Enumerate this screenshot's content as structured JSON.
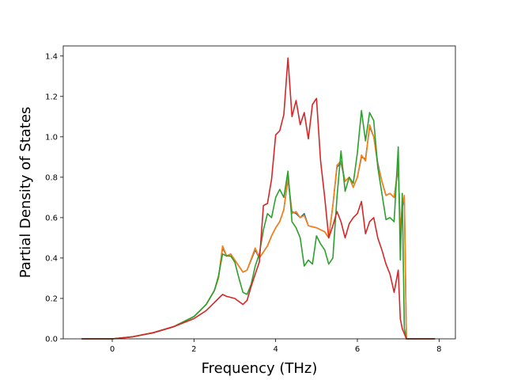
{
  "chart_data": {
    "type": "line",
    "xlabel": "Frequency (THz)",
    "ylabel": "Partial Density of States",
    "xlim": [
      -1.2,
      8.4
    ],
    "ylim": [
      0.0,
      1.45
    ],
    "x_ticks": [
      0,
      2,
      4,
      6,
      8
    ],
    "y_ticks": [
      0.0,
      0.2,
      0.4,
      0.6,
      0.8,
      1.0,
      1.2,
      1.4
    ],
    "x_tick_labels": [
      "0",
      "2",
      "4",
      "6",
      "8"
    ],
    "y_tick_labels": [
      "0.0",
      "0.2",
      "0.4",
      "0.6",
      "0.8",
      "1.0",
      "1.2",
      "1.4"
    ],
    "grid": false,
    "series": [
      {
        "color": "#1f77b4",
        "points": [
          [
            -0.75,
            0
          ],
          [
            0,
            0
          ],
          [
            0.5,
            0.01
          ],
          [
            1.0,
            0.03
          ],
          [
            1.5,
            0.06
          ],
          [
            2.0,
            0.11
          ],
          [
            2.3,
            0.17
          ],
          [
            2.5,
            0.24
          ],
          [
            2.6,
            0.3
          ],
          [
            2.7,
            0.45
          ],
          [
            2.8,
            0.41
          ],
          [
            2.9,
            0.42
          ],
          [
            3.0,
            0.39
          ],
          [
            3.2,
            0.33
          ],
          [
            3.3,
            0.34
          ],
          [
            3.5,
            0.44
          ],
          [
            3.6,
            0.4
          ],
          [
            3.7,
            0.43
          ],
          [
            3.8,
            0.46
          ],
          [
            3.9,
            0.51
          ],
          [
            4.0,
            0.55
          ],
          [
            4.1,
            0.58
          ],
          [
            4.2,
            0.64
          ],
          [
            4.3,
            0.79
          ],
          [
            4.4,
            0.63
          ],
          [
            4.5,
            0.62
          ],
          [
            4.6,
            0.6
          ],
          [
            4.7,
            0.62
          ],
          [
            4.8,
            0.56
          ],
          [
            5.0,
            0.55
          ],
          [
            5.1,
            0.54
          ],
          [
            5.2,
            0.53
          ],
          [
            5.3,
            0.5
          ],
          [
            5.4,
            0.66
          ],
          [
            5.5,
            0.85
          ],
          [
            5.6,
            0.87
          ],
          [
            5.7,
            0.78
          ],
          [
            5.8,
            0.8
          ],
          [
            5.9,
            0.75
          ],
          [
            6.0,
            0.8
          ],
          [
            6.1,
            0.9
          ],
          [
            6.2,
            0.89
          ],
          [
            6.3,
            1.05
          ],
          [
            6.4,
            1.0
          ],
          [
            6.5,
            0.87
          ],
          [
            6.6,
            0.78
          ],
          [
            6.7,
            0.71
          ],
          [
            6.8,
            0.72
          ],
          [
            6.9,
            0.7
          ],
          [
            7.0,
            0.85
          ],
          [
            7.05,
            0.53
          ],
          [
            7.1,
            0.65
          ],
          [
            7.15,
            0.7
          ],
          [
            7.2,
            0
          ],
          [
            7.9,
            0
          ]
        ]
      },
      {
        "color": "#ff7f0e",
        "points": [
          [
            -0.75,
            0
          ],
          [
            0,
            0
          ],
          [
            0.5,
            0.01
          ],
          [
            1.0,
            0.03
          ],
          [
            1.5,
            0.06
          ],
          [
            2.0,
            0.11
          ],
          [
            2.3,
            0.17
          ],
          [
            2.5,
            0.24
          ],
          [
            2.6,
            0.3
          ],
          [
            2.7,
            0.46
          ],
          [
            2.8,
            0.41
          ],
          [
            2.9,
            0.42
          ],
          [
            3.0,
            0.39
          ],
          [
            3.2,
            0.33
          ],
          [
            3.3,
            0.34
          ],
          [
            3.5,
            0.45
          ],
          [
            3.6,
            0.4
          ],
          [
            3.7,
            0.43
          ],
          [
            3.8,
            0.46
          ],
          [
            3.9,
            0.51
          ],
          [
            4.0,
            0.55
          ],
          [
            4.1,
            0.58
          ],
          [
            4.2,
            0.64
          ],
          [
            4.3,
            0.8
          ],
          [
            4.4,
            0.62
          ],
          [
            4.5,
            0.63
          ],
          [
            4.6,
            0.6
          ],
          [
            4.7,
            0.61
          ],
          [
            4.8,
            0.56
          ],
          [
            5.0,
            0.55
          ],
          [
            5.1,
            0.54
          ],
          [
            5.2,
            0.53
          ],
          [
            5.3,
            0.5
          ],
          [
            5.4,
            0.66
          ],
          [
            5.5,
            0.86
          ],
          [
            5.6,
            0.88
          ],
          [
            5.7,
            0.78
          ],
          [
            5.8,
            0.8
          ],
          [
            5.9,
            0.75
          ],
          [
            6.0,
            0.8
          ],
          [
            6.1,
            0.91
          ],
          [
            6.2,
            0.88
          ],
          [
            6.3,
            1.06
          ],
          [
            6.4,
            1.0
          ],
          [
            6.5,
            0.86
          ],
          [
            6.6,
            0.78
          ],
          [
            6.7,
            0.71
          ],
          [
            6.8,
            0.72
          ],
          [
            6.9,
            0.7
          ],
          [
            7.0,
            0.86
          ],
          [
            7.05,
            0.53
          ],
          [
            7.1,
            0.66
          ],
          [
            7.15,
            0.71
          ],
          [
            7.2,
            0
          ],
          [
            7.9,
            0
          ]
        ]
      },
      {
        "color": "#2ca02c",
        "points": [
          [
            -0.75,
            0
          ],
          [
            0,
            0
          ],
          [
            0.5,
            0.01
          ],
          [
            1.0,
            0.03
          ],
          [
            1.5,
            0.06
          ],
          [
            2.0,
            0.11
          ],
          [
            2.3,
            0.17
          ],
          [
            2.5,
            0.24
          ],
          [
            2.6,
            0.31
          ],
          [
            2.7,
            0.42
          ],
          [
            2.8,
            0.41
          ],
          [
            2.9,
            0.41
          ],
          [
            3.0,
            0.38
          ],
          [
            3.1,
            0.3
          ],
          [
            3.2,
            0.23
          ],
          [
            3.3,
            0.22
          ],
          [
            3.4,
            0.27
          ],
          [
            3.5,
            0.36
          ],
          [
            3.6,
            0.42
          ],
          [
            3.7,
            0.54
          ],
          [
            3.8,
            0.62
          ],
          [
            3.9,
            0.6
          ],
          [
            4.0,
            0.7
          ],
          [
            4.1,
            0.74
          ],
          [
            4.2,
            0.7
          ],
          [
            4.3,
            0.83
          ],
          [
            4.4,
            0.58
          ],
          [
            4.5,
            0.55
          ],
          [
            4.6,
            0.5
          ],
          [
            4.7,
            0.36
          ],
          [
            4.8,
            0.39
          ],
          [
            4.9,
            0.37
          ],
          [
            5.0,
            0.51
          ],
          [
            5.1,
            0.47
          ],
          [
            5.2,
            0.44
          ],
          [
            5.3,
            0.37
          ],
          [
            5.4,
            0.4
          ],
          [
            5.5,
            0.7
          ],
          [
            5.6,
            0.93
          ],
          [
            5.7,
            0.73
          ],
          [
            5.8,
            0.8
          ],
          [
            5.9,
            0.77
          ],
          [
            6.0,
            0.92
          ],
          [
            6.1,
            1.13
          ],
          [
            6.2,
            0.98
          ],
          [
            6.3,
            1.12
          ],
          [
            6.4,
            1.08
          ],
          [
            6.5,
            0.85
          ],
          [
            6.6,
            0.72
          ],
          [
            6.7,
            0.59
          ],
          [
            6.8,
            0.6
          ],
          [
            6.9,
            0.58
          ],
          [
            7.0,
            0.95
          ],
          [
            7.05,
            0.39
          ],
          [
            7.1,
            0.72
          ],
          [
            7.15,
            0.05
          ],
          [
            7.2,
            0
          ],
          [
            7.9,
            0
          ]
        ]
      },
      {
        "color": "#d62728",
        "points": [
          [
            -0.75,
            0
          ],
          [
            0,
            0
          ],
          [
            0.5,
            0.01
          ],
          [
            1.0,
            0.03
          ],
          [
            1.5,
            0.06
          ],
          [
            2.0,
            0.1
          ],
          [
            2.3,
            0.14
          ],
          [
            2.5,
            0.18
          ],
          [
            2.6,
            0.2
          ],
          [
            2.7,
            0.22
          ],
          [
            2.8,
            0.21
          ],
          [
            3.0,
            0.2
          ],
          [
            3.2,
            0.17
          ],
          [
            3.3,
            0.19
          ],
          [
            3.4,
            0.26
          ],
          [
            3.5,
            0.32
          ],
          [
            3.6,
            0.38
          ],
          [
            3.7,
            0.66
          ],
          [
            3.8,
            0.67
          ],
          [
            3.9,
            0.79
          ],
          [
            4.0,
            1.01
          ],
          [
            4.1,
            1.03
          ],
          [
            4.2,
            1.11
          ],
          [
            4.3,
            1.39
          ],
          [
            4.4,
            1.1
          ],
          [
            4.5,
            1.18
          ],
          [
            4.6,
            1.06
          ],
          [
            4.7,
            1.12
          ],
          [
            4.8,
            0.99
          ],
          [
            4.9,
            1.16
          ],
          [
            5.0,
            1.19
          ],
          [
            5.1,
            0.88
          ],
          [
            5.2,
            0.7
          ],
          [
            5.3,
            0.5
          ],
          [
            5.4,
            0.56
          ],
          [
            5.5,
            0.63
          ],
          [
            5.6,
            0.58
          ],
          [
            5.7,
            0.5
          ],
          [
            5.8,
            0.57
          ],
          [
            5.9,
            0.6
          ],
          [
            6.0,
            0.62
          ],
          [
            6.1,
            0.68
          ],
          [
            6.2,
            0.52
          ],
          [
            6.3,
            0.58
          ],
          [
            6.4,
            0.6
          ],
          [
            6.5,
            0.5
          ],
          [
            6.6,
            0.44
          ],
          [
            6.7,
            0.37
          ],
          [
            6.8,
            0.32
          ],
          [
            6.9,
            0.23
          ],
          [
            7.0,
            0.34
          ],
          [
            7.05,
            0.1
          ],
          [
            7.1,
            0.05
          ],
          [
            7.2,
            0
          ],
          [
            7.9,
            0
          ]
        ]
      }
    ]
  }
}
